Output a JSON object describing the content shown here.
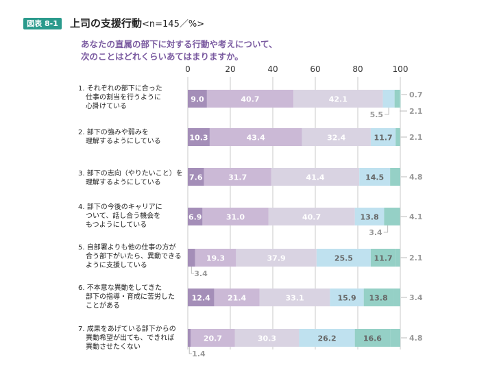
{
  "figure": {
    "badge": "図表 8-1",
    "title": "上司の支援行動",
    "subtitle": "<n=145／%>"
  },
  "question": {
    "line1": "あなたの直属の部下に対する行動や考えについて、",
    "line2": "次のことはどれくらいあてはまりますか。"
  },
  "colors": [
    "#a48eb8",
    "#cbb9d6",
    "#d9d3e2",
    "#bfe1ef",
    "#95d0c6"
  ],
  "chart_data": {
    "type": "bar",
    "orientation": "horizontal",
    "stacked": true,
    "xlim": [
      0,
      100
    ],
    "xticks": [
      "0",
      "20",
      "40",
      "60",
      "80",
      "100"
    ],
    "grid": true,
    "categories": [
      [
        "1. それぞれの部下に合った",
        "仕事の割当を行うように",
        "心掛けている"
      ],
      [
        "2. 部下の強みや弱みを",
        "理解するようにしている"
      ],
      [
        "3. 部下の志向（やりたいこと）を",
        "理解するようにしている"
      ],
      [
        "4. 部下の今後のキャリアに",
        "ついて、話し合う機会を",
        "もつようにしている"
      ],
      [
        "5. 自部署よりも他の仕事の方が",
        "合う部下がいたら、異動できる",
        "ように支援している"
      ],
      [
        "6. 不本意な異動をしてきた",
        "部下の指導・育成に苦労した",
        "ことがある"
      ],
      [
        "7. 成果をあげている部下からの",
        "異動希望が出ても、できれば",
        "異動させたくない"
      ]
    ],
    "series": [
      {
        "values": [
          9.0,
          10.3,
          7.6,
          6.9,
          3.4,
          12.4,
          1.4
        ]
      },
      {
        "values": [
          40.7,
          43.4,
          31.7,
          31.0,
          19.3,
          21.4,
          20.7
        ]
      },
      {
        "values": [
          42.1,
          32.4,
          41.4,
          40.7,
          37.9,
          33.1,
          30.3
        ]
      },
      {
        "values": [
          5.5,
          11.7,
          14.5,
          13.8,
          25.5,
          15.9,
          26.2
        ]
      },
      {
        "values": [
          2.1,
          2.1,
          4.8,
          3.4,
          11.7,
          13.8,
          16.6
        ]
      },
      {
        "values": [
          0.7,
          0,
          0,
          4.1,
          2.1,
          3.4,
          4.8
        ]
      }
    ],
    "data_labels": [
      [
        "9.0",
        "40.7",
        "42.1",
        "5.5",
        "2.1",
        "0.7"
      ],
      [
        "10.3",
        "43.4",
        "32.4",
        "11.7",
        "2.1"
      ],
      [
        "7.6",
        "31.7",
        "41.4",
        "14.5",
        "4.8"
      ],
      [
        "6.9",
        "31.0",
        "40.7",
        "13.8",
        "3.4",
        "4.1"
      ],
      [
        "3.4",
        "19.3",
        "37.9",
        "25.5",
        "11.7",
        "2.1"
      ],
      [
        "12.4",
        "21.4",
        "33.1",
        "15.9",
        "13.8",
        "3.4"
      ],
      [
        "1.4",
        "20.7",
        "30.3",
        "26.2",
        "16.6",
        "4.8"
      ]
    ]
  }
}
